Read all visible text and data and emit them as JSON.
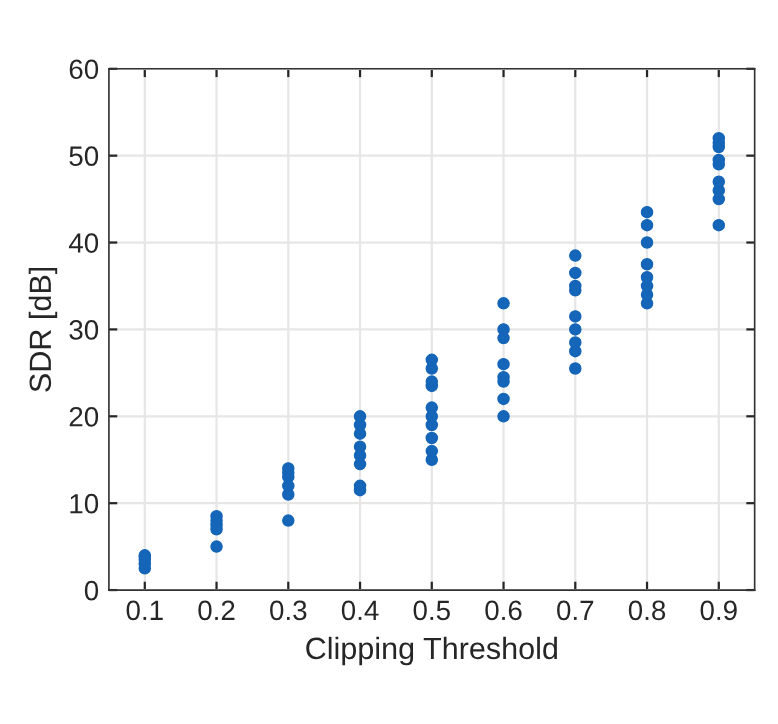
{
  "chart_data": {
    "type": "scatter",
    "xlabel": "Clipping Threshold",
    "ylabel": "SDR [dB]",
    "x": [
      0.1,
      0.1,
      0.1,
      0.1,
      0.1,
      0.2,
      0.2,
      0.2,
      0.2,
      0.2,
      0.3,
      0.3,
      0.3,
      0.3,
      0.3,
      0.3,
      0.4,
      0.4,
      0.4,
      0.4,
      0.4,
      0.4,
      0.4,
      0.4,
      0.5,
      0.5,
      0.5,
      0.5,
      0.5,
      0.5,
      0.5,
      0.5,
      0.5,
      0.5,
      0.6,
      0.6,
      0.6,
      0.6,
      0.6,
      0.6,
      0.6,
      0.6,
      0.7,
      0.7,
      0.7,
      0.7,
      0.7,
      0.7,
      0.7,
      0.7,
      0.7,
      0.8,
      0.8,
      0.8,
      0.8,
      0.8,
      0.8,
      0.8,
      0.8,
      0.9,
      0.9,
      0.9,
      0.9,
      0.9,
      0.9,
      0.9,
      0.9,
      0.9
    ],
    "series": [
      {
        "color": "#1565b8",
        "values": [
          2.5,
          3,
          3.5,
          4,
          3.8,
          5,
          7,
          7.5,
          8,
          8.5,
          8,
          11,
          12,
          13,
          13.5,
          14,
          11.5,
          12,
          14.5,
          15.5,
          16.5,
          18,
          19,
          20,
          15,
          16,
          17.5,
          19,
          20,
          21,
          23.5,
          24,
          25.5,
          26.5,
          20,
          22,
          24,
          24.5,
          26,
          29,
          30,
          33,
          25.5,
          27.5,
          28.5,
          30,
          31.5,
          34.5,
          35,
          36.5,
          38.5,
          33,
          34,
          35,
          36,
          37.5,
          40,
          42,
          43.5,
          42,
          45,
          46,
          47,
          49,
          49.5,
          51,
          51.5,
          52
        ]
      }
    ],
    "xlim": [
      0.05,
      0.95
    ],
    "xticks": [
      0.1,
      0.2,
      0.3,
      0.4,
      0.5,
      0.6,
      0.7,
      0.8,
      0.9
    ],
    "ylim": [
      0,
      60
    ],
    "yticks": [
      0,
      10,
      20,
      30,
      40,
      50,
      60
    ],
    "grid": true,
    "marker": "circle"
  }
}
